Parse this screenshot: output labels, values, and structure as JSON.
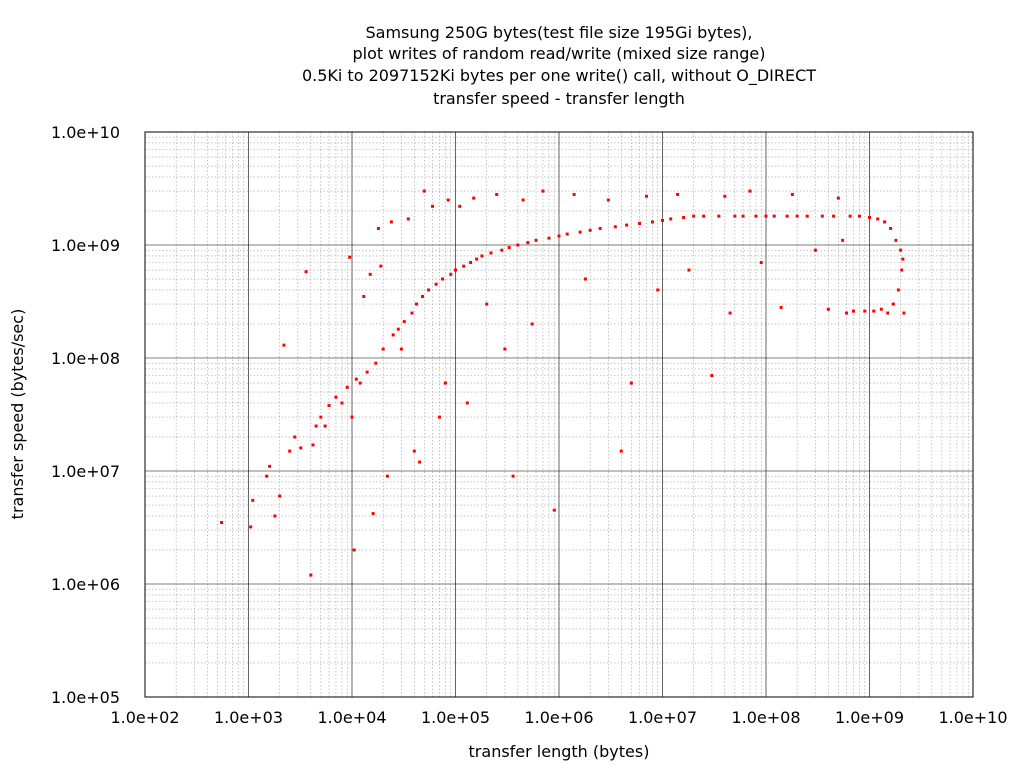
{
  "chart_data": {
    "type": "scatter",
    "title": [
      "Samsung 250G bytes(test file size 195Gi bytes),",
      "plot writes of random read/write (mixed size range)",
      "0.5Ki to 2097152Ki bytes per one write() call, without O_DIRECT",
      "transfer speed - transfer length"
    ],
    "xlabel": "transfer length (bytes)",
    "ylabel": "transfer speed (bytes/sec)",
    "x_scale": "log",
    "y_scale": "log",
    "xlim": [
      100,
      10000000000
    ],
    "ylim": [
      100000,
      10000000000
    ],
    "x_ticks": [
      {
        "value": 100,
        "label": "1.0e+02"
      },
      {
        "value": 1000,
        "label": "1.0e+03"
      },
      {
        "value": 10000,
        "label": "1.0e+04"
      },
      {
        "value": 100000,
        "label": "1.0e+05"
      },
      {
        "value": 1000000,
        "label": "1.0e+06"
      },
      {
        "value": 10000000,
        "label": "1.0e+07"
      },
      {
        "value": 100000000,
        "label": "1.0e+08"
      },
      {
        "value": 1000000000,
        "label": "1.0e+09"
      },
      {
        "value": 10000000000,
        "label": "1.0e+10"
      }
    ],
    "y_ticks": [
      {
        "value": 100000,
        "label": "1.0e+05"
      },
      {
        "value": 1000000,
        "label": "1.0e+06"
      },
      {
        "value": 10000000,
        "label": "1.0e+07"
      },
      {
        "value": 100000000,
        "label": "1.0e+08"
      },
      {
        "value": 1000000000,
        "label": "1.0e+09"
      },
      {
        "value": 10000000000,
        "label": "1.0e+10"
      }
    ],
    "grid": true,
    "marker_color": "#ff0000",
    "points": [
      [
        550,
        3500000
      ],
      [
        1050,
        3200000
      ],
      [
        1100,
        5500000
      ],
      [
        1500,
        9000000
      ],
      [
        1600,
        11000000
      ],
      [
        1800,
        4000000
      ],
      [
        2000,
        6000000
      ],
      [
        2200,
        130000000
      ],
      [
        2500,
        15000000
      ],
      [
        2800,
        20000000
      ],
      [
        3200,
        16000000
      ],
      [
        3600,
        580000000
      ],
      [
        4000,
        1200000
      ],
      [
        4200,
        17000000
      ],
      [
        4500,
        25000000
      ],
      [
        5000,
        30000000
      ],
      [
        5500,
        25000000
      ],
      [
        6000,
        38000000
      ],
      [
        7000,
        45000000
      ],
      [
        8000,
        40000000
      ],
      [
        9000,
        55000000
      ],
      [
        9500,
        780000000
      ],
      [
        10000,
        30000000
      ],
      [
        10500,
        2000000
      ],
      [
        11000,
        65000000
      ],
      [
        12000,
        60000000
      ],
      [
        13000,
        350000000
      ],
      [
        14000,
        75000000
      ],
      [
        15000,
        550000000
      ],
      [
        16000,
        4200000
      ],
      [
        17000,
        90000000
      ],
      [
        18000,
        1400000000
      ],
      [
        19000,
        650000000
      ],
      [
        20000,
        120000000
      ],
      [
        22000,
        9000000
      ],
      [
        24000,
        1600000000
      ],
      [
        25000,
        160000000
      ],
      [
        28000,
        180000000
      ],
      [
        30000,
        120000000
      ],
      [
        32000,
        210000000
      ],
      [
        35000,
        1700000000
      ],
      [
        38000,
        250000000
      ],
      [
        40000,
        15000000
      ],
      [
        42000,
        300000000
      ],
      [
        45000,
        12000000
      ],
      [
        48000,
        350000000
      ],
      [
        50000,
        3000000000
      ],
      [
        55000,
        400000000
      ],
      [
        60000,
        2200000000
      ],
      [
        65000,
        450000000
      ],
      [
        70000,
        30000000
      ],
      [
        75000,
        500000000
      ],
      [
        80000,
        60000000
      ],
      [
        85000,
        2500000000
      ],
      [
        90000,
        550000000
      ],
      [
        100000,
        600000000
      ],
      [
        110000,
        2200000000
      ],
      [
        120000,
        650000000
      ],
      [
        130000,
        40000000
      ],
      [
        140000,
        700000000
      ],
      [
        150000,
        2600000000
      ],
      [
        160000,
        750000000
      ],
      [
        180000,
        800000000
      ],
      [
        200000,
        300000000
      ],
      [
        220000,
        850000000
      ],
      [
        250000,
        2800000000
      ],
      [
        280000,
        900000000
      ],
      [
        300000,
        120000000
      ],
      [
        330000,
        950000000
      ],
      [
        360000,
        9000000
      ],
      [
        400000,
        1000000000
      ],
      [
        450000,
        2500000000
      ],
      [
        500000,
        1050000000
      ],
      [
        550000,
        200000000
      ],
      [
        600000,
        1100000000
      ],
      [
        700000,
        3000000000
      ],
      [
        800000,
        1150000000
      ],
      [
        900000,
        4500000
      ],
      [
        1000000,
        1200000000
      ],
      [
        1200000,
        1250000000
      ],
      [
        1400000,
        2800000000
      ],
      [
        1600000,
        1300000000
      ],
      [
        1800000,
        500000000
      ],
      [
        2000000,
        1350000000
      ],
      [
        2500000,
        1400000000
      ],
      [
        3000000,
        2500000000
      ],
      [
        3500000,
        1450000000
      ],
      [
        4000000,
        15000000
      ],
      [
        4500000,
        1500000000
      ],
      [
        5000000,
        60000000
      ],
      [
        6000000,
        1550000000
      ],
      [
        7000000,
        2700000000
      ],
      [
        8000000,
        1600000000
      ],
      [
        9000000,
        400000000
      ],
      [
        10000000,
        1650000000
      ],
      [
        12000000,
        1700000000
      ],
      [
        14000000,
        2800000000
      ],
      [
        16000000,
        1750000000
      ],
      [
        18000000,
        600000000
      ],
      [
        20000000,
        1800000000
      ],
      [
        25000000,
        1800000000
      ],
      [
        30000000,
        70000000
      ],
      [
        35000000,
        1800000000
      ],
      [
        40000000,
        2700000000
      ],
      [
        45000000,
        250000000
      ],
      [
        50000000,
        1800000000
      ],
      [
        60000000,
        1800000000
      ],
      [
        70000000,
        3000000000
      ],
      [
        80000000,
        1800000000
      ],
      [
        90000000,
        700000000
      ],
      [
        100000000,
        1800000000
      ],
      [
        120000000,
        1800000000
      ],
      [
        140000000,
        280000000
      ],
      [
        160000000,
        1800000000
      ],
      [
        180000000,
        2800000000
      ],
      [
        200000000,
        1800000000
      ],
      [
        250000000,
        1800000000
      ],
      [
        300000000,
        900000000
      ],
      [
        350000000,
        1800000000
      ],
      [
        400000000,
        270000000
      ],
      [
        450000000,
        1800000000
      ],
      [
        500000000,
        2600000000
      ],
      [
        550000000,
        1100000000
      ],
      [
        600000000,
        250000000
      ],
      [
        650000000,
        1800000000
      ],
      [
        700000000,
        260000000
      ],
      [
        800000000,
        1800000000
      ],
      [
        900000000,
        260000000
      ],
      [
        1000000000,
        1750000000
      ],
      [
        1100000000,
        260000000
      ],
      [
        1200000000,
        1700000000
      ],
      [
        1300000000,
        270000000
      ],
      [
        1400000000,
        1600000000
      ],
      [
        1500000000,
        250000000
      ],
      [
        1600000000,
        1400000000
      ],
      [
        1700000000,
        300000000
      ],
      [
        1800000000,
        1100000000
      ],
      [
        1900000000,
        400000000
      ],
      [
        2000000000,
        900000000
      ],
      [
        2050000000,
        600000000
      ],
      [
        2100000000,
        750000000
      ],
      [
        2150000000,
        250000000
      ]
    ]
  }
}
